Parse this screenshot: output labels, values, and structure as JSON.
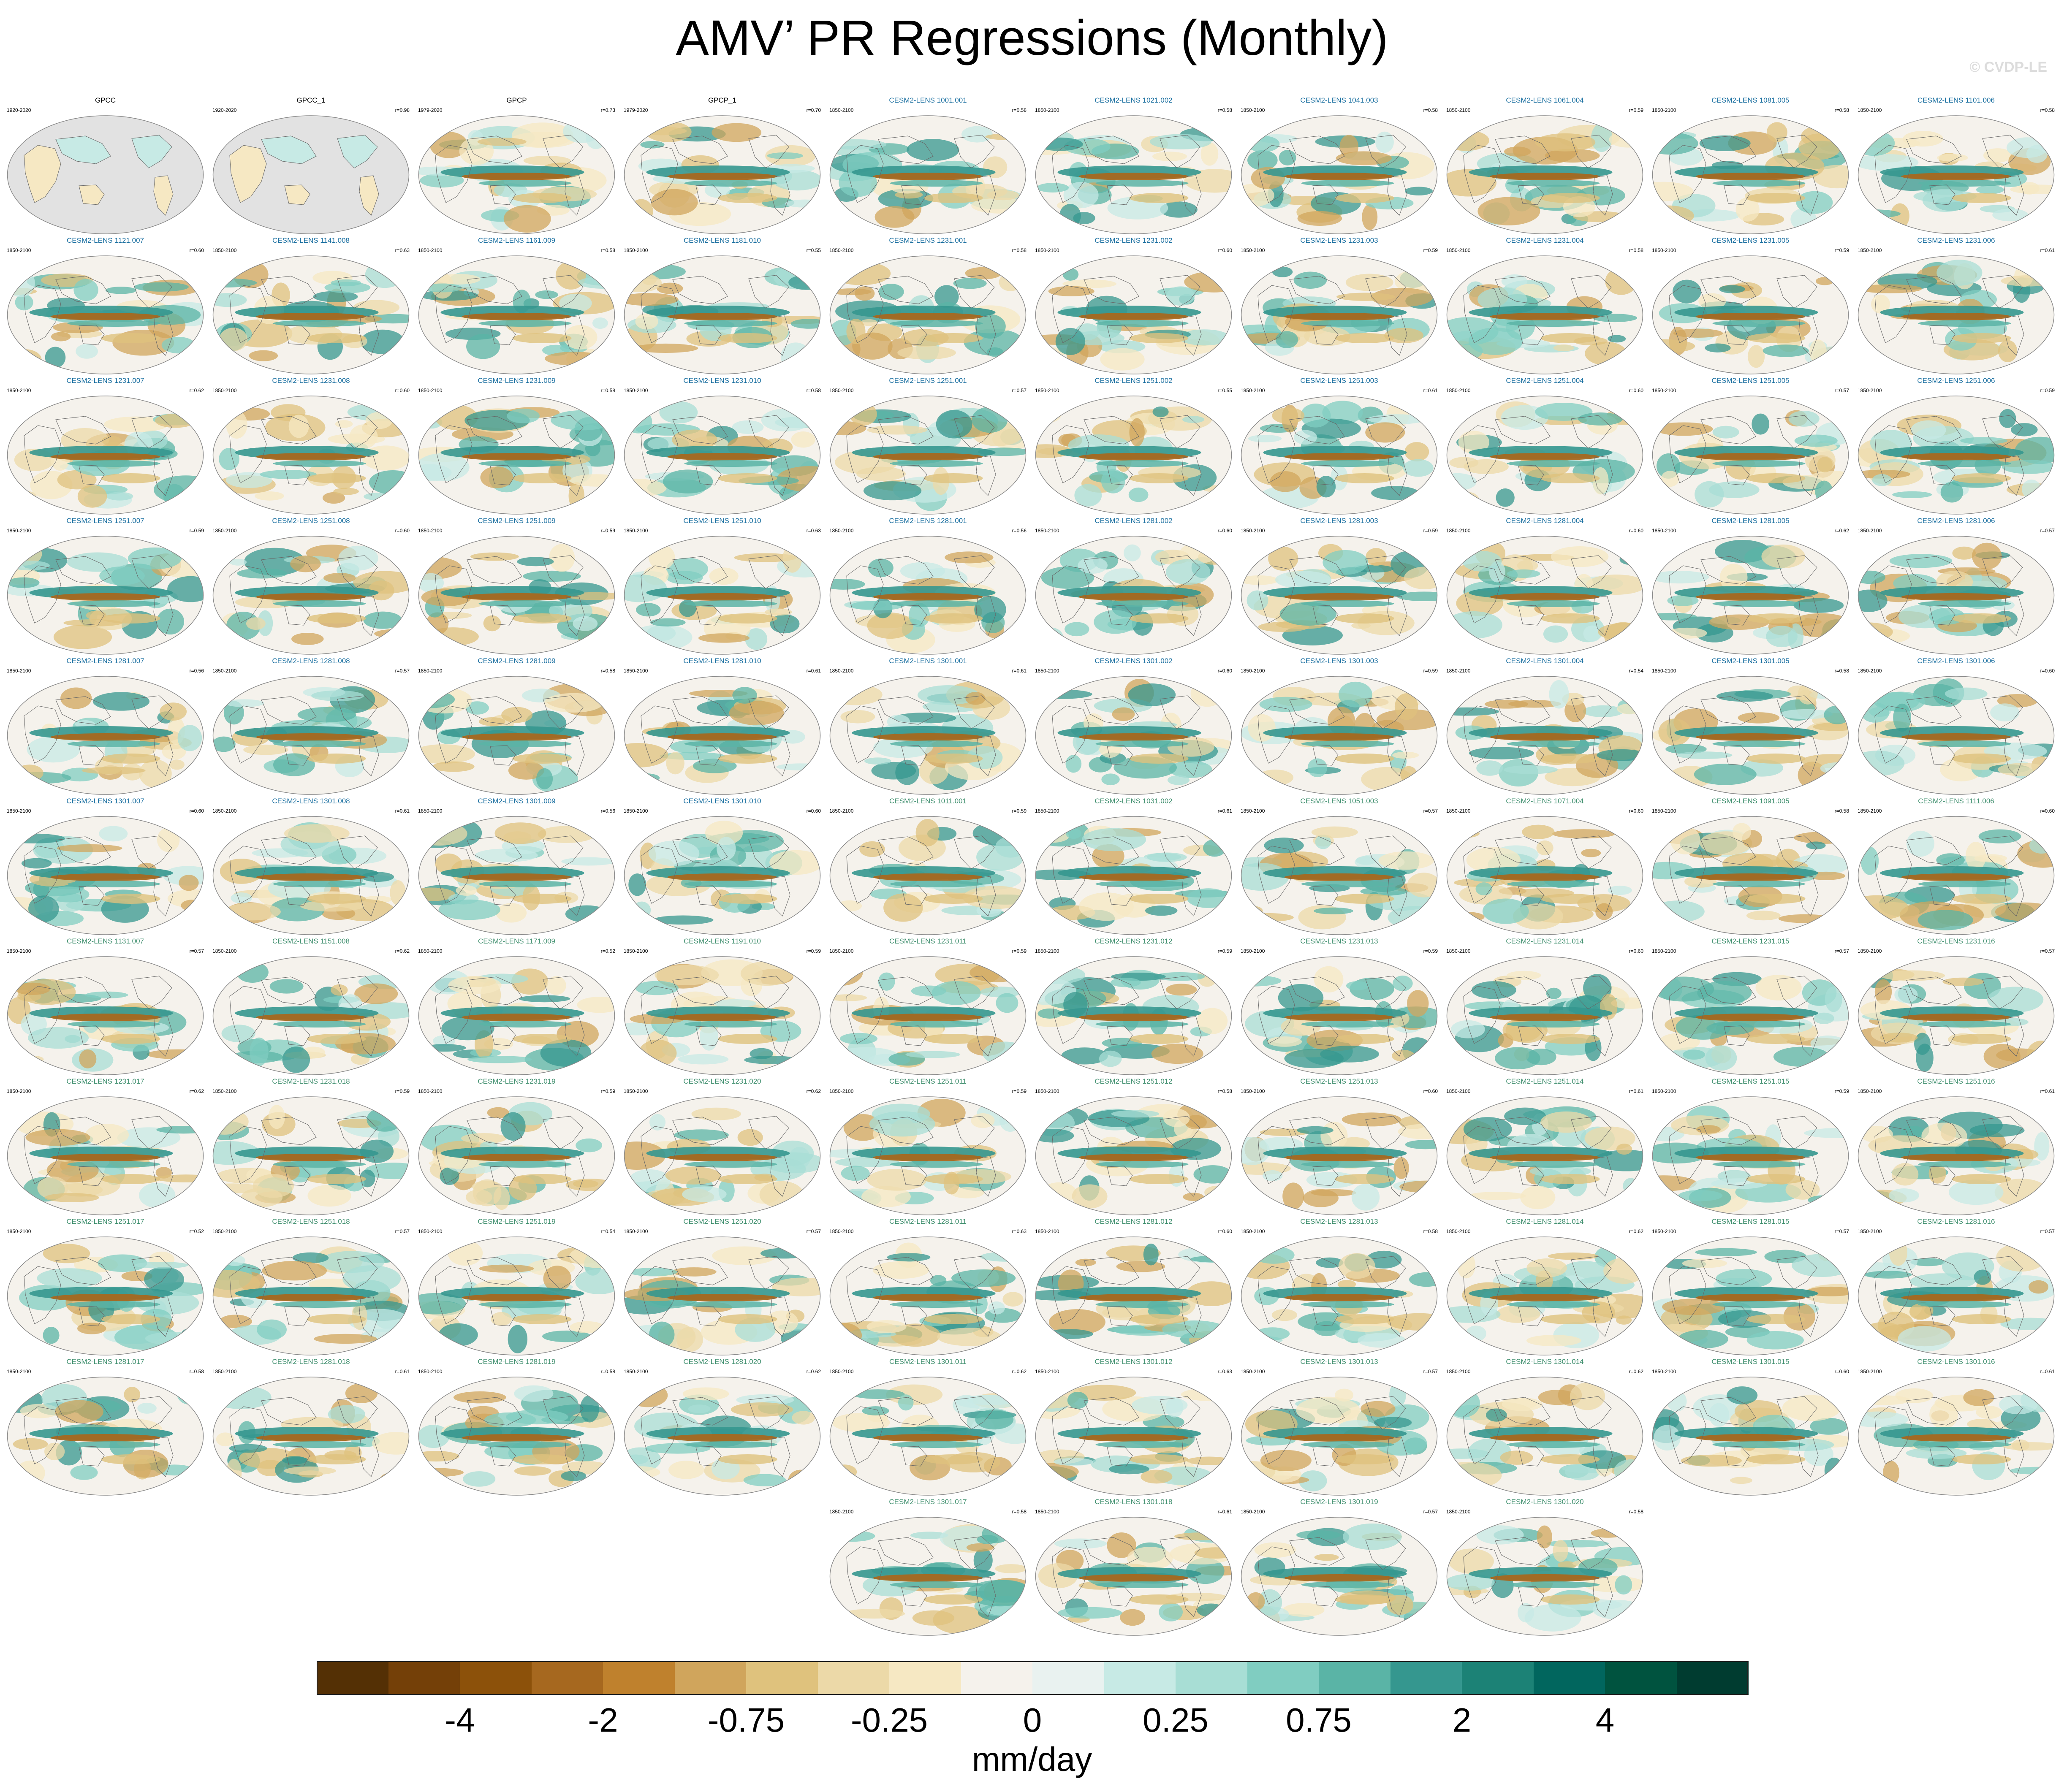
{
  "title": "AMV’ PR Regressions (Monthly)",
  "watermark": "© CVDP-LE",
  "chart_data": {
    "type": "heatmap",
    "title": "AMV’ PR Regressions (Monthly)",
    "description_units": "mm/day",
    "colorbar": {
      "label": "mm/day",
      "tick_labels": [
        "-4",
        "-2",
        "-0.75",
        "-0.25",
        "0",
        "0.25",
        "0.75",
        "2",
        "4"
      ],
      "levels": [
        -5,
        -4,
        -3,
        -2,
        -1,
        -0.75,
        -0.5,
        -0.25,
        -0.1,
        0,
        0.1,
        0.25,
        0.5,
        0.75,
        1,
        2,
        3,
        4,
        5
      ],
      "colors": [
        "#543005",
        "#744008",
        "#8c510a",
        "#a6681f",
        "#bf812d",
        "#d0a55c",
        "#dfc27d",
        "#ecd9a8",
        "#f6e8c3",
        "#f5f2ec",
        "#e9f2f0",
        "#c7eae5",
        "#a8ded5",
        "#80cdc1",
        "#5ab4a6",
        "#35978f",
        "#1c8276",
        "#01665e",
        "#00533f",
        "#003c30"
      ]
    },
    "panels": [
      {
        "name": "GPCC",
        "years": "1920-2020",
        "r": "",
        "type": "obs_land"
      },
      {
        "name": "GPCC_1",
        "years": "1920-2020",
        "r": "r=0.98",
        "type": "obs_land"
      },
      {
        "name": "GPCP",
        "years": "1979-2020",
        "r": "r=0.73",
        "type": "obs"
      },
      {
        "name": "GPCP_1",
        "years": "1979-2020",
        "r": "r=0.70",
        "type": "obs"
      },
      {
        "name": "CESM2-LENS 1001.001",
        "years": "1850-2100",
        "r": "r=0.58",
        "type": "model_a"
      },
      {
        "name": "CESM2-LENS 1021.002",
        "years": "1850-2100",
        "r": "r=0.58",
        "type": "model_a"
      },
      {
        "name": "CESM2-LENS 1041.003",
        "years": "1850-2100",
        "r": "r=0.58",
        "type": "model_a"
      },
      {
        "name": "CESM2-LENS 1061.004",
        "years": "1850-2100",
        "r": "r=0.59",
        "type": "model_a"
      },
      {
        "name": "CESM2-LENS 1081.005",
        "years": "1850-2100",
        "r": "r=0.58",
        "type": "model_a"
      },
      {
        "name": "CESM2-LENS 1101.006",
        "years": "1850-2100",
        "r": "r=0.58",
        "type": "model_a"
      },
      {
        "name": "CESM2-LENS 1121.007",
        "years": "1850-2100",
        "r": "r=0.60",
        "type": "model_a"
      },
      {
        "name": "CESM2-LENS 1141.008",
        "years": "1850-2100",
        "r": "r=0.63",
        "type": "model_a"
      },
      {
        "name": "CESM2-LENS 1161.009",
        "years": "1850-2100",
        "r": "r=0.58",
        "type": "model_a"
      },
      {
        "name": "CESM2-LENS 1181.010",
        "years": "1850-2100",
        "r": "r=0.55",
        "type": "model_a"
      },
      {
        "name": "CESM2-LENS 1231.001",
        "years": "1850-2100",
        "r": "r=0.58",
        "type": "model_a"
      },
      {
        "name": "CESM2-LENS 1231.002",
        "years": "1850-2100",
        "r": "r=0.60",
        "type": "model_a"
      },
      {
        "name": "CESM2-LENS 1231.003",
        "years": "1850-2100",
        "r": "r=0.59",
        "type": "model_a"
      },
      {
        "name": "CESM2-LENS 1231.004",
        "years": "1850-2100",
        "r": "r=0.58",
        "type": "model_a"
      },
      {
        "name": "CESM2-LENS 1231.005",
        "years": "1850-2100",
        "r": "r=0.59",
        "type": "model_a"
      },
      {
        "name": "CESM2-LENS 1231.006",
        "years": "1850-2100",
        "r": "r=0.61",
        "type": "model_a"
      },
      {
        "name": "CESM2-LENS 1231.007",
        "years": "1850-2100",
        "r": "r=0.62",
        "type": "model_a"
      },
      {
        "name": "CESM2-LENS 1231.008",
        "years": "1850-2100",
        "r": "r=0.60",
        "type": "model_a"
      },
      {
        "name": "CESM2-LENS 1231.009",
        "years": "1850-2100",
        "r": "r=0.58",
        "type": "model_a"
      },
      {
        "name": "CESM2-LENS 1231.010",
        "years": "1850-2100",
        "r": "r=0.58",
        "type": "model_a"
      },
      {
        "name": "CESM2-LENS 1251.001",
        "years": "1850-2100",
        "r": "r=0.57",
        "type": "model_a"
      },
      {
        "name": "CESM2-LENS 1251.002",
        "years": "1850-2100",
        "r": "r=0.55",
        "type": "model_a"
      },
      {
        "name": "CESM2-LENS 1251.003",
        "years": "1850-2100",
        "r": "r=0.61",
        "type": "model_a"
      },
      {
        "name": "CESM2-LENS 1251.004",
        "years": "1850-2100",
        "r": "r=0.60",
        "type": "model_a"
      },
      {
        "name": "CESM2-LENS 1251.005",
        "years": "1850-2100",
        "r": "r=0.57",
        "type": "model_a"
      },
      {
        "name": "CESM2-LENS 1251.006",
        "years": "1850-2100",
        "r": "r=0.59",
        "type": "model_a"
      },
      {
        "name": "CESM2-LENS 1251.007",
        "years": "1850-2100",
        "r": "r=0.59",
        "type": "model_a"
      },
      {
        "name": "CESM2-LENS 1251.008",
        "years": "1850-2100",
        "r": "r=0.60",
        "type": "model_a"
      },
      {
        "name": "CESM2-LENS 1251.009",
        "years": "1850-2100",
        "r": "r=0.59",
        "type": "model_a"
      },
      {
        "name": "CESM2-LENS 1251.010",
        "years": "1850-2100",
        "r": "r=0.63",
        "type": "model_a"
      },
      {
        "name": "CESM2-LENS 1281.001",
        "years": "1850-2100",
        "r": "r=0.56",
        "type": "model_a"
      },
      {
        "name": "CESM2-LENS 1281.002",
        "years": "1850-2100",
        "r": "r=0.60",
        "type": "model_a"
      },
      {
        "name": "CESM2-LENS 1281.003",
        "years": "1850-2100",
        "r": "r=0.59",
        "type": "model_a"
      },
      {
        "name": "CESM2-LENS 1281.004",
        "years": "1850-2100",
        "r": "r=0.60",
        "type": "model_a"
      },
      {
        "name": "CESM2-LENS 1281.005",
        "years": "1850-2100",
        "r": "r=0.62",
        "type": "model_a"
      },
      {
        "name": "CESM2-LENS 1281.006",
        "years": "1850-2100",
        "r": "r=0.57",
        "type": "model_a"
      },
      {
        "name": "CESM2-LENS 1281.007",
        "years": "1850-2100",
        "r": "r=0.56",
        "type": "model_a"
      },
      {
        "name": "CESM2-LENS 1281.008",
        "years": "1850-2100",
        "r": "r=0.57",
        "type": "model_a"
      },
      {
        "name": "CESM2-LENS 1281.009",
        "years": "1850-2100",
        "r": "r=0.58",
        "type": "model_a"
      },
      {
        "name": "CESM2-LENS 1281.010",
        "years": "1850-2100",
        "r": "r=0.61",
        "type": "model_a"
      },
      {
        "name": "CESM2-LENS 1301.001",
        "years": "1850-2100",
        "r": "r=0.61",
        "type": "model_a"
      },
      {
        "name": "CESM2-LENS 1301.002",
        "years": "1850-2100",
        "r": "r=0.60",
        "type": "model_a"
      },
      {
        "name": "CESM2-LENS 1301.003",
        "years": "1850-2100",
        "r": "r=0.59",
        "type": "model_a"
      },
      {
        "name": "CESM2-LENS 1301.004",
        "years": "1850-2100",
        "r": "r=0.54",
        "type": "model_a"
      },
      {
        "name": "CESM2-LENS 1301.005",
        "years": "1850-2100",
        "r": "r=0.58",
        "type": "model_a"
      },
      {
        "name": "CESM2-LENS 1301.006",
        "years": "1850-2100",
        "r": "r=0.60",
        "type": "model_a"
      },
      {
        "name": "CESM2-LENS 1301.007",
        "years": "1850-2100",
        "r": "r=0.60",
        "type": "model_a"
      },
      {
        "name": "CESM2-LENS 1301.008",
        "years": "1850-2100",
        "r": "r=0.61",
        "type": "model_a"
      },
      {
        "name": "CESM2-LENS 1301.009",
        "years": "1850-2100",
        "r": "r=0.56",
        "type": "model_a"
      },
      {
        "name": "CESM2-LENS 1301.010",
        "years": "1850-2100",
        "r": "r=0.60",
        "type": "model_a"
      },
      {
        "name": "CESM2-LENS 1011.001",
        "years": "1850-2100",
        "r": "r=0.59",
        "type": "model_b"
      },
      {
        "name": "CESM2-LENS 1031.002",
        "years": "1850-2100",
        "r": "r=0.61",
        "type": "model_b"
      },
      {
        "name": "CESM2-LENS 1051.003",
        "years": "1850-2100",
        "r": "r=0.57",
        "type": "model_b"
      },
      {
        "name": "CESM2-LENS 1071.004",
        "years": "1850-2100",
        "r": "r=0.60",
        "type": "model_b"
      },
      {
        "name": "CESM2-LENS 1091.005",
        "years": "1850-2100",
        "r": "r=0.58",
        "type": "model_b"
      },
      {
        "name": "CESM2-LENS 1111.006",
        "years": "1850-2100",
        "r": "r=0.60",
        "type": "model_b"
      },
      {
        "name": "CESM2-LENS 1131.007",
        "years": "1850-2100",
        "r": "r=0.57",
        "type": "model_b"
      },
      {
        "name": "CESM2-LENS 1151.008",
        "years": "1850-2100",
        "r": "r=0.62",
        "type": "model_b"
      },
      {
        "name": "CESM2-LENS 1171.009",
        "years": "1850-2100",
        "r": "r=0.52",
        "type": "model_b"
      },
      {
        "name": "CESM2-LENS 1191.010",
        "years": "1850-2100",
        "r": "r=0.59",
        "type": "model_b"
      },
      {
        "name": "CESM2-LENS 1231.011",
        "years": "1850-2100",
        "r": "r=0.59",
        "type": "model_b"
      },
      {
        "name": "CESM2-LENS 1231.012",
        "years": "1850-2100",
        "r": "r=0.59",
        "type": "model_b"
      },
      {
        "name": "CESM2-LENS 1231.013",
        "years": "1850-2100",
        "r": "r=0.59",
        "type": "model_b"
      },
      {
        "name": "CESM2-LENS 1231.014",
        "years": "1850-2100",
        "r": "r=0.60",
        "type": "model_b"
      },
      {
        "name": "CESM2-LENS 1231.015",
        "years": "1850-2100",
        "r": "r=0.57",
        "type": "model_b"
      },
      {
        "name": "CESM2-LENS 1231.016",
        "years": "1850-2100",
        "r": "r=0.57",
        "type": "model_b"
      },
      {
        "name": "CESM2-LENS 1231.017",
        "years": "1850-2100",
        "r": "r=0.62",
        "type": "model_b"
      },
      {
        "name": "CESM2-LENS 1231.018",
        "years": "1850-2100",
        "r": "r=0.59",
        "type": "model_b"
      },
      {
        "name": "CESM2-LENS 1231.019",
        "years": "1850-2100",
        "r": "r=0.59",
        "type": "model_b"
      },
      {
        "name": "CESM2-LENS 1231.020",
        "years": "1850-2100",
        "r": "r=0.62",
        "type": "model_b"
      },
      {
        "name": "CESM2-LENS 1251.011",
        "years": "1850-2100",
        "r": "r=0.59",
        "type": "model_b"
      },
      {
        "name": "CESM2-LENS 1251.012",
        "years": "1850-2100",
        "r": "r=0.58",
        "type": "model_b"
      },
      {
        "name": "CESM2-LENS 1251.013",
        "years": "1850-2100",
        "r": "r=0.60",
        "type": "model_b"
      },
      {
        "name": "CESM2-LENS 1251.014",
        "years": "1850-2100",
        "r": "r=0.61",
        "type": "model_b"
      },
      {
        "name": "CESM2-LENS 1251.015",
        "years": "1850-2100",
        "r": "r=0.59",
        "type": "model_b"
      },
      {
        "name": "CESM2-LENS 1251.016",
        "years": "1850-2100",
        "r": "r=0.61",
        "type": "model_b"
      },
      {
        "name": "CESM2-LENS 1251.017",
        "years": "1850-2100",
        "r": "r=0.52",
        "type": "model_b"
      },
      {
        "name": "CESM2-LENS 1251.018",
        "years": "1850-2100",
        "r": "r=0.57",
        "type": "model_b"
      },
      {
        "name": "CESM2-LENS 1251.019",
        "years": "1850-2100",
        "r": "r=0.54",
        "type": "model_b"
      },
      {
        "name": "CESM2-LENS 1251.020",
        "years": "1850-2100",
        "r": "r=0.57",
        "type": "model_b"
      },
      {
        "name": "CESM2-LENS 1281.011",
        "years": "1850-2100",
        "r": "r=0.63",
        "type": "model_b"
      },
      {
        "name": "CESM2-LENS 1281.012",
        "years": "1850-2100",
        "r": "r=0.60",
        "type": "model_b"
      },
      {
        "name": "CESM2-LENS 1281.013",
        "years": "1850-2100",
        "r": "r=0.58",
        "type": "model_b"
      },
      {
        "name": "CESM2-LENS 1281.014",
        "years": "1850-2100",
        "r": "r=0.62",
        "type": "model_b"
      },
      {
        "name": "CESM2-LENS 1281.015",
        "years": "1850-2100",
        "r": "r=0.57",
        "type": "model_b"
      },
      {
        "name": "CESM2-LENS 1281.016",
        "years": "1850-2100",
        "r": "r=0.57",
        "type": "model_b"
      },
      {
        "name": "CESM2-LENS 1281.017",
        "years": "1850-2100",
        "r": "r=0.58",
        "type": "model_b"
      },
      {
        "name": "CESM2-LENS 1281.018",
        "years": "1850-2100",
        "r": "r=0.61",
        "type": "model_b"
      },
      {
        "name": "CESM2-LENS 1281.019",
        "years": "1850-2100",
        "r": "r=0.58",
        "type": "model_b"
      },
      {
        "name": "CESM2-LENS 1281.020",
        "years": "1850-2100",
        "r": "r=0.62",
        "type": "model_b"
      },
      {
        "name": "CESM2-LENS 1301.011",
        "years": "1850-2100",
        "r": "r=0.62",
        "type": "model_b"
      },
      {
        "name": "CESM2-LENS 1301.012",
        "years": "1850-2100",
        "r": "r=0.63",
        "type": "model_b"
      },
      {
        "name": "CESM2-LENS 1301.013",
        "years": "1850-2100",
        "r": "r=0.57",
        "type": "model_b"
      },
      {
        "name": "CESM2-LENS 1301.014",
        "years": "1850-2100",
        "r": "r=0.62",
        "type": "model_b"
      },
      {
        "name": "CESM2-LENS 1301.015",
        "years": "1850-2100",
        "r": "r=0.60",
        "type": "model_b"
      },
      {
        "name": "CESM2-LENS 1301.016",
        "years": "1850-2100",
        "r": "r=0.61",
        "type": "model_b"
      },
      {
        "name": "CESM2-LENS 1301.017",
        "years": "1850-2100",
        "r": "r=0.58",
        "type": "model_b"
      },
      {
        "name": "CESM2-LENS 1301.018",
        "years": "1850-2100",
        "r": "r=0.61",
        "type": "model_b"
      },
      {
        "name": "CESM2-LENS 1301.019",
        "years": "1850-2100",
        "r": "r=0.57",
        "type": "model_b"
      },
      {
        "name": "CESM2-LENS 1301.020",
        "years": "1850-2100",
        "r": "r=0.58",
        "type": "model_b"
      }
    ]
  },
  "colors": {
    "obs_title": "#000000",
    "model_a_title": "#1a6fa0",
    "model_b_title": "#3f8f6e",
    "land_mask": "#e2e2e2",
    "coast": "#666666",
    "map_border": "#888888"
  }
}
